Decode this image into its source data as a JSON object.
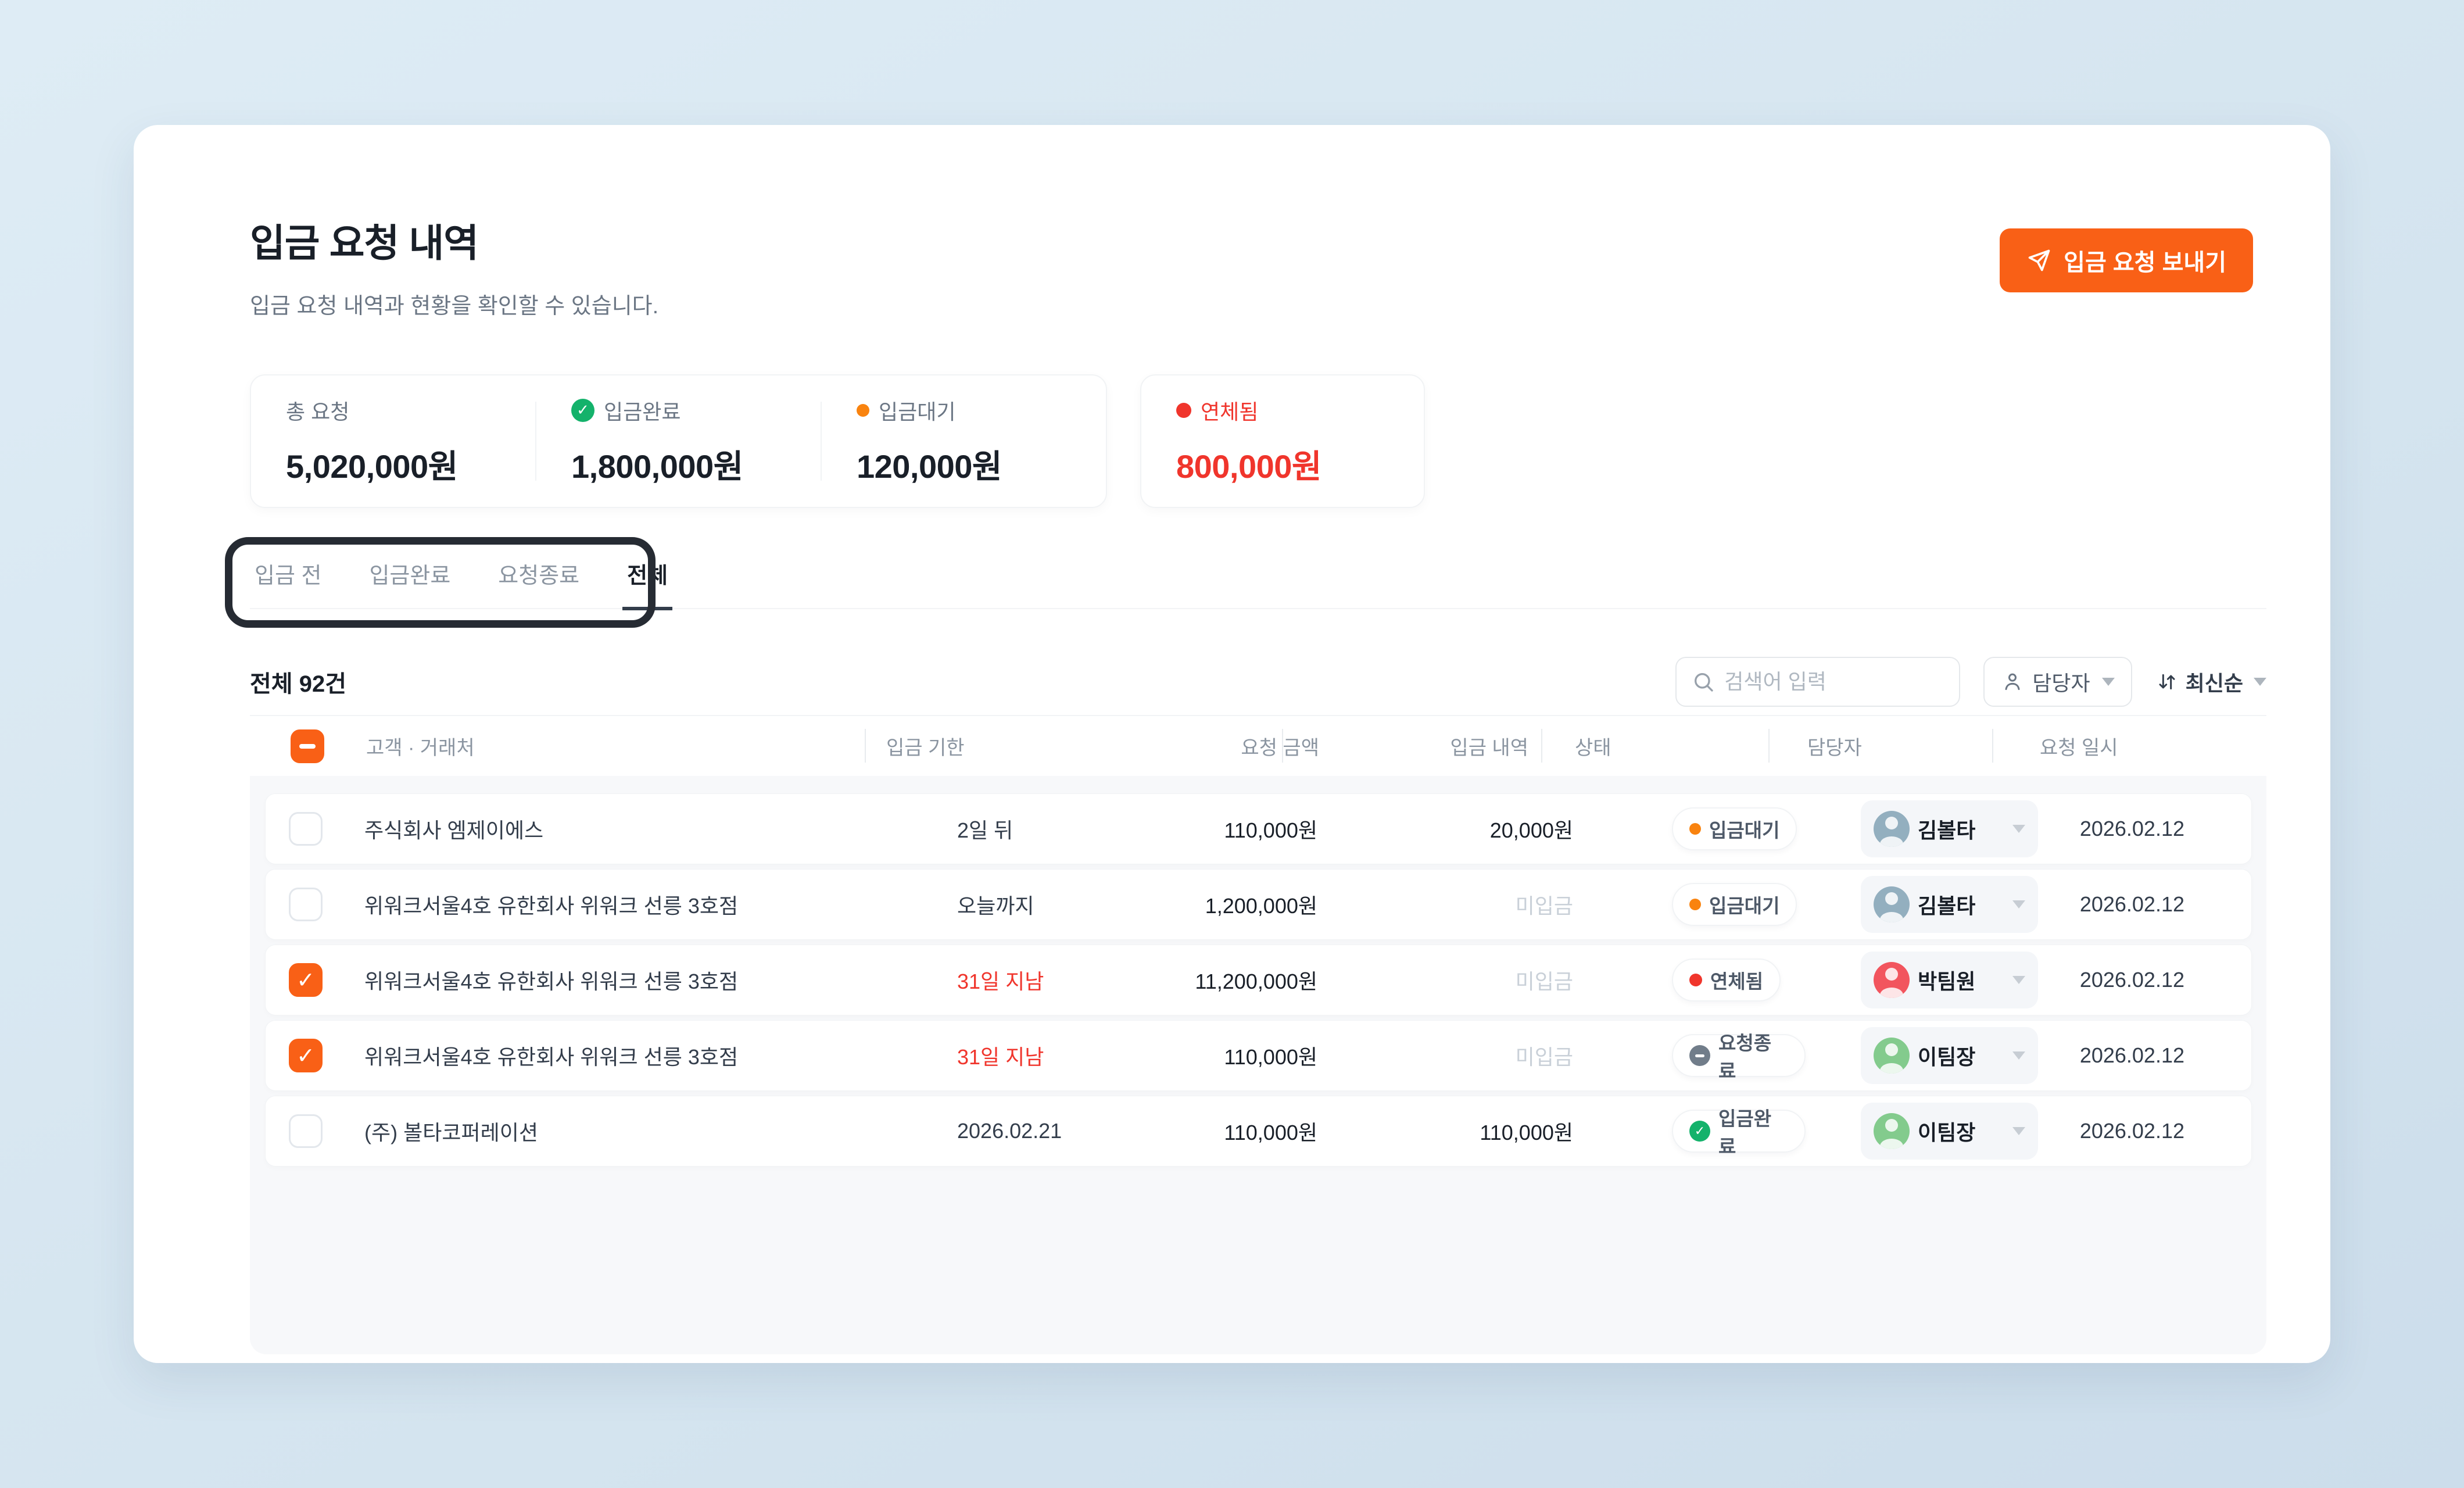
{
  "page": {
    "title": "입금 요청 내역",
    "subtitle": "입금 요청 내역과 현황을 확인할 수 있습니다.",
    "send_button_label": "입금 요청 보내기"
  },
  "summary": {
    "total": {
      "label": "총 요청",
      "value": "5,020,000원"
    },
    "completed": {
      "label": "입금완료",
      "value": "1,800,000원"
    },
    "pending": {
      "label": "입금대기",
      "value": "120,000원"
    },
    "overdue": {
      "label": "연체됨",
      "value": "800,000원"
    }
  },
  "tabs": [
    {
      "label": "입금 전",
      "active": false
    },
    {
      "label": "입금완료",
      "active": false
    },
    {
      "label": "요청종료",
      "active": false
    },
    {
      "label": "전체",
      "active": true
    }
  ],
  "toolbar": {
    "count_label": "전체 92건",
    "search_placeholder": "검색어 입력",
    "assignee_filter_label": "담당자",
    "sort_label": "최신순"
  },
  "table": {
    "columns": [
      "고객 · 거래처",
      "입금 기한",
      "요청 금액",
      "입금 내역",
      "상태",
      "담당자",
      "요청 일시"
    ],
    "rows": [
      {
        "checked": false,
        "customer": "주식회사 엠제이에스",
        "deadline": "2일 뒤",
        "deadline_overdue": false,
        "amount": "110,000원",
        "deposit": "20,000원",
        "deposit_muted": false,
        "status": "입금대기",
        "status_type": "pending",
        "assignee": "김볼타",
        "avatar_color": "blue",
        "date": "2026.02.12"
      },
      {
        "checked": false,
        "customer": "위워크서울4호 유한회사 위워크 선릉 3호점",
        "deadline": "오늘까지",
        "deadline_overdue": false,
        "amount": "1,200,000원",
        "deposit": "미입금",
        "deposit_muted": true,
        "status": "입금대기",
        "status_type": "pending",
        "assignee": "김볼타",
        "avatar_color": "blue",
        "date": "2026.02.12"
      },
      {
        "checked": true,
        "customer": "위워크서울4호 유한회사 위워크 선릉 3호점",
        "deadline": "31일 지남",
        "deadline_overdue": true,
        "amount": "11,200,000원",
        "deposit": "미입금",
        "deposit_muted": true,
        "status": "연체됨",
        "status_type": "overdue",
        "assignee": "박팀원",
        "avatar_color": "red",
        "date": "2026.02.12"
      },
      {
        "checked": true,
        "customer": "위워크서울4호 유한회사 위워크 선릉 3호점",
        "deadline": "31일 지남",
        "deadline_overdue": true,
        "amount": "110,000원",
        "deposit": "미입금",
        "deposit_muted": true,
        "status": "요청종료",
        "status_type": "closed",
        "assignee": "이팀장",
        "avatar_color": "green",
        "date": "2026.02.12"
      },
      {
        "checked": false,
        "customer": "(주) 볼타코퍼레이션",
        "deadline": "2026.02.21",
        "deadline_overdue": false,
        "amount": "110,000원",
        "deposit": "110,000원",
        "deposit_muted": false,
        "status": "입금완료",
        "status_type": "done",
        "assignee": "이팀장",
        "avatar_color": "green",
        "date": "2026.02.12"
      }
    ]
  },
  "colors": {
    "accent_orange": "#F96016",
    "status_pending_orange": "#F9830F",
    "status_overdue_red": "#F0352C",
    "status_done_green": "#14B26B",
    "status_closed_gray": "#717D8A",
    "page_background_blue": "#D4E4EF"
  }
}
